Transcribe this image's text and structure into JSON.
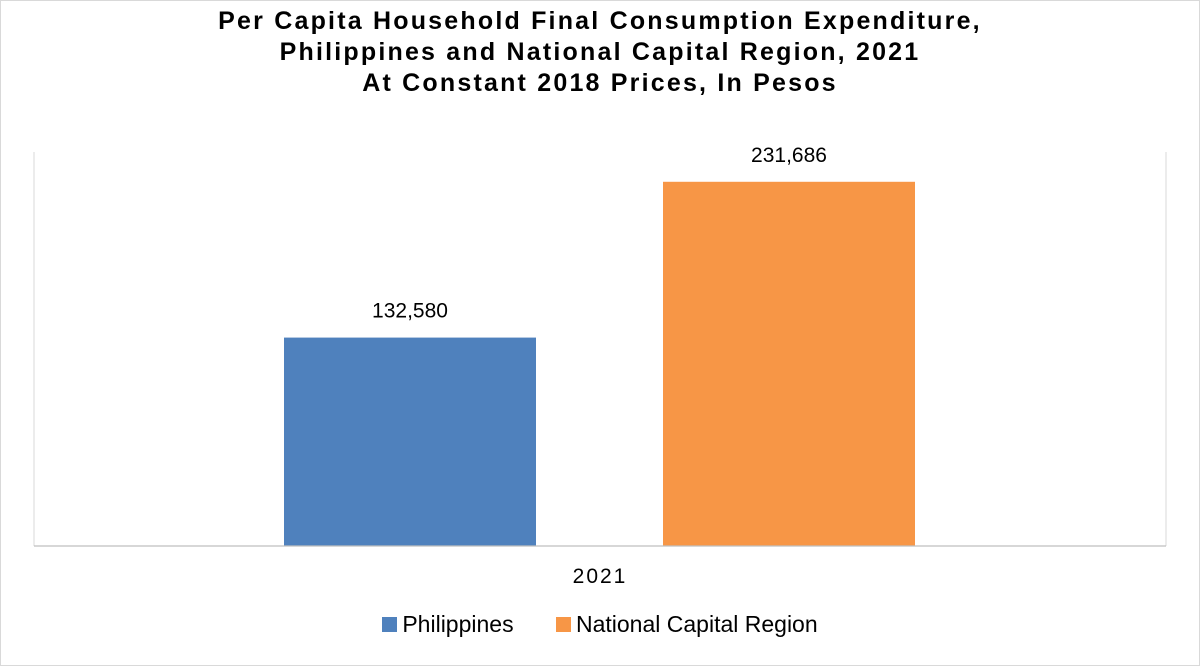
{
  "chart_data": {
    "type": "bar",
    "title_lines": [
      "Per Capita Household Final Consumption Expenditure,",
      "Philippines and National Capital Region, 2021",
      "At Constant 2018 Prices, In Pesos"
    ],
    "categories": [
      "2021"
    ],
    "series": [
      {
        "name": "Philippines",
        "values": [
          132580
        ],
        "labels": [
          "132,580"
        ],
        "color": "#4f81bd"
      },
      {
        "name": "National Capital Region",
        "values": [
          231686
        ],
        "labels": [
          "231,686"
        ],
        "color": "#f79646"
      }
    ],
    "ylim": [
      0,
      250000
    ],
    "grid": false,
    "legend_position": "bottom"
  }
}
